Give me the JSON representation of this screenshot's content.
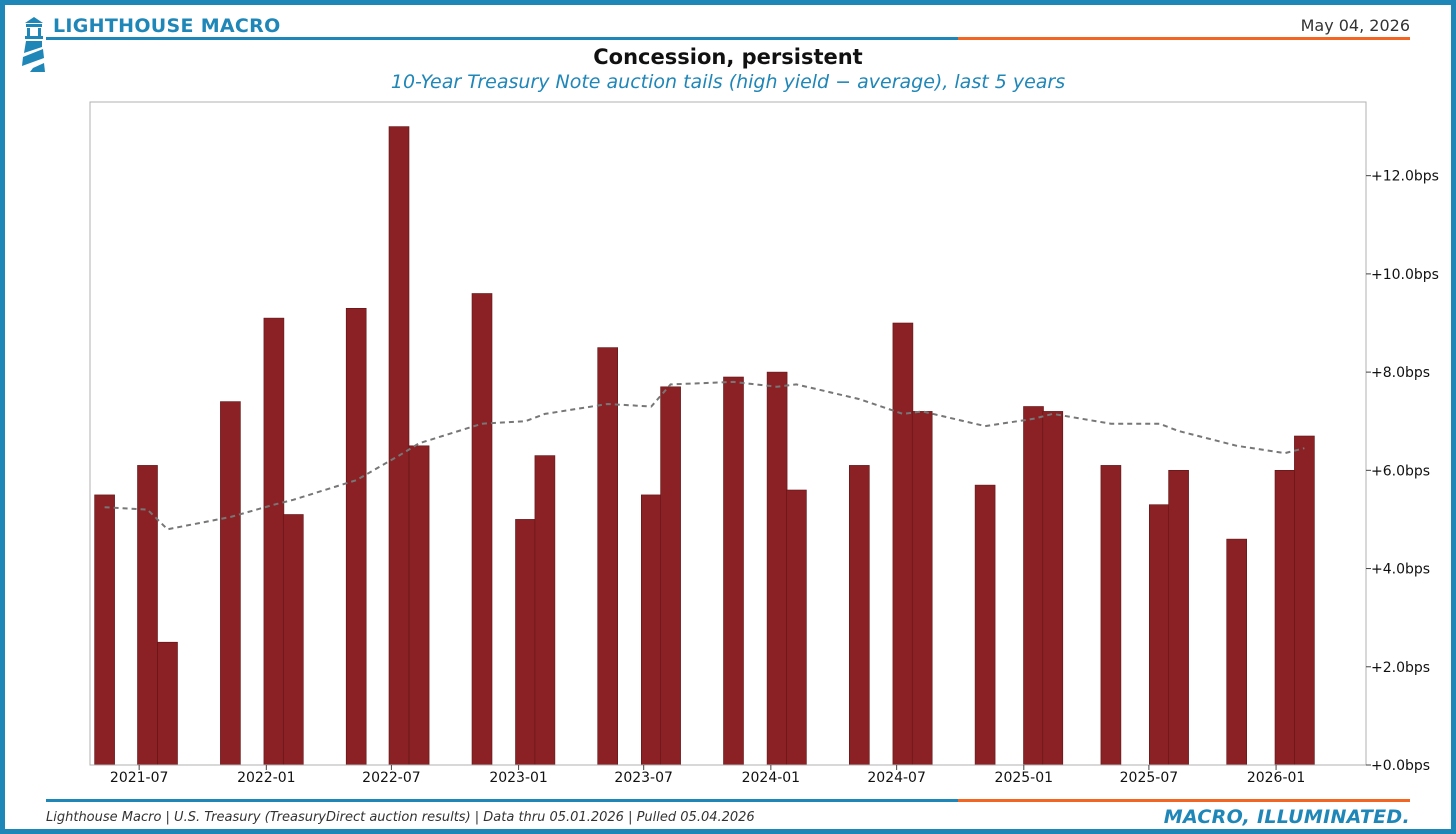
{
  "header": {
    "brand": "LIGHTHOUSE MACRO",
    "date": "May 04, 2026",
    "title": "Concession, persistent",
    "subtitle": "10-Year Treasury Note auction tails (high yield − average), last 5 years"
  },
  "footer": {
    "source": "Lighthouse Macro | U.S. Treasury (TreasuryDirect auction results) | Data thru 05.01.2026 | Pulled 05.04.2026",
    "tagline": "MACRO, ILLUMINATED."
  },
  "colors": {
    "brand_blue": "#1f86b8",
    "accent_orange": "#f26522",
    "bar": "#8b2124",
    "bar_edge": "#5e1416",
    "average_line": "#777777"
  },
  "chart_data": {
    "type": "bar",
    "x_type": "date",
    "xlim": [
      "2021-05-01",
      "2026-05-01"
    ],
    "ylim": [
      0,
      13.5
    ],
    "yaxis_side": "right",
    "yticks": [
      0,
      2,
      4,
      6,
      8,
      10,
      12
    ],
    "ytick_labels": [
      "+0.0bps",
      "+2.0bps",
      "+4.0bps",
      "+6.0bps",
      "+8.0bps",
      "+10.0bps",
      "+12.0bps"
    ],
    "xticks": [
      "2021-07-01",
      "2022-01-01",
      "2022-07-01",
      "2023-01-01",
      "2023-07-01",
      "2024-01-01",
      "2024-07-01",
      "2025-01-01",
      "2025-07-01",
      "2026-01-01"
    ],
    "xtick_labels": [
      "2021-07",
      "2022-01",
      "2022-07",
      "2023-01",
      "2023-07",
      "2024-01",
      "2024-07",
      "2025-01",
      "2025-07",
      "2026-01"
    ],
    "grid": false,
    "legend": false,
    "series": [
      {
        "type": "bar",
        "unit": "bps",
        "points": [
          {
            "date": "2021-05-12",
            "value": 5.5
          },
          {
            "date": "2021-07-13",
            "value": 6.1
          },
          {
            "date": "2021-08-11",
            "value": 2.5
          },
          {
            "date": "2021-11-10",
            "value": 7.4
          },
          {
            "date": "2022-01-12",
            "value": 9.1
          },
          {
            "date": "2022-02-09",
            "value": 5.1
          },
          {
            "date": "2022-05-11",
            "value": 9.3
          },
          {
            "date": "2022-07-12",
            "value": 13.0
          },
          {
            "date": "2022-08-10",
            "value": 6.5
          },
          {
            "date": "2022-11-09",
            "value": 9.6
          },
          {
            "date": "2023-01-11",
            "value": 5.0
          },
          {
            "date": "2023-02-08",
            "value": 6.3
          },
          {
            "date": "2023-05-10",
            "value": 8.5
          },
          {
            "date": "2023-07-12",
            "value": 5.5
          },
          {
            "date": "2023-08-09",
            "value": 7.7
          },
          {
            "date": "2023-11-08",
            "value": 7.9
          },
          {
            "date": "2024-01-10",
            "value": 8.0
          },
          {
            "date": "2024-02-07",
            "value": 5.6
          },
          {
            "date": "2024-05-08",
            "value": 6.1
          },
          {
            "date": "2024-07-10",
            "value": 9.0
          },
          {
            "date": "2024-08-07",
            "value": 7.2
          },
          {
            "date": "2024-11-06",
            "value": 5.7
          },
          {
            "date": "2025-01-15",
            "value": 7.3
          },
          {
            "date": "2025-02-12",
            "value": 7.2
          },
          {
            "date": "2025-05-07",
            "value": 6.1
          },
          {
            "date": "2025-07-16",
            "value": 5.3
          },
          {
            "date": "2025-08-13",
            "value": 6.0
          },
          {
            "date": "2025-11-05",
            "value": 4.6
          },
          {
            "date": "2026-01-14",
            "value": 6.0
          },
          {
            "date": "2026-02-11",
            "value": 6.7
          }
        ]
      },
      {
        "type": "line",
        "style": "dashed",
        "points": [
          {
            "date": "2021-05-12",
            "value": 5.25
          },
          {
            "date": "2021-07-13",
            "value": 5.2
          },
          {
            "date": "2021-08-11",
            "value": 4.8
          },
          {
            "date": "2021-11-10",
            "value": 5.05
          },
          {
            "date": "2022-01-12",
            "value": 5.3
          },
          {
            "date": "2022-02-09",
            "value": 5.4
          },
          {
            "date": "2022-05-11",
            "value": 5.8
          },
          {
            "date": "2022-07-12",
            "value": 6.3
          },
          {
            "date": "2022-08-10",
            "value": 6.55
          },
          {
            "date": "2022-11-09",
            "value": 6.95
          },
          {
            "date": "2023-01-11",
            "value": 7.0
          },
          {
            "date": "2023-02-08",
            "value": 7.15
          },
          {
            "date": "2023-05-10",
            "value": 7.35
          },
          {
            "date": "2023-07-12",
            "value": 7.3
          },
          {
            "date": "2023-08-09",
            "value": 7.75
          },
          {
            "date": "2023-11-08",
            "value": 7.8
          },
          {
            "date": "2024-01-10",
            "value": 7.7
          },
          {
            "date": "2024-02-07",
            "value": 7.75
          },
          {
            "date": "2024-05-08",
            "value": 7.45
          },
          {
            "date": "2024-07-10",
            "value": 7.15
          },
          {
            "date": "2024-08-07",
            "value": 7.2
          },
          {
            "date": "2024-11-06",
            "value": 6.9
          },
          {
            "date": "2025-01-15",
            "value": 7.05
          },
          {
            "date": "2025-02-12",
            "value": 7.15
          },
          {
            "date": "2025-05-07",
            "value": 6.95
          },
          {
            "date": "2025-07-16",
            "value": 6.95
          },
          {
            "date": "2025-08-13",
            "value": 6.8
          },
          {
            "date": "2025-11-05",
            "value": 6.5
          },
          {
            "date": "2026-01-14",
            "value": 6.35
          },
          {
            "date": "2026-02-11",
            "value": 6.45
          }
        ]
      }
    ]
  }
}
